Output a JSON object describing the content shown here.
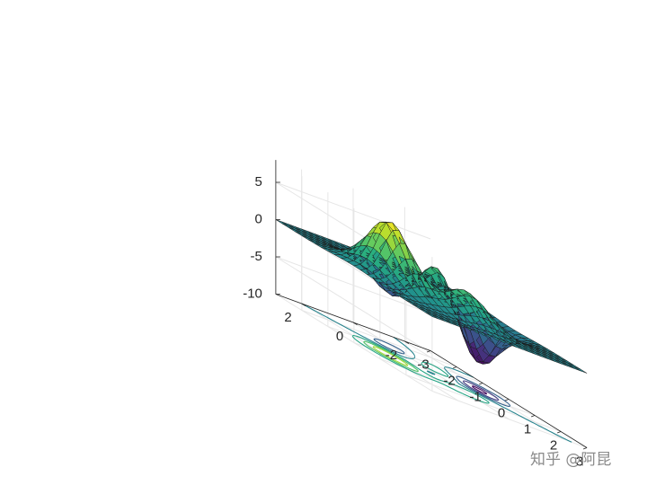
{
  "chart_data": {
    "type": "surface",
    "function": "peaks",
    "x": {
      "min": -3,
      "max": 3,
      "ticks": [
        -3,
        -2,
        -1,
        0,
        1,
        2,
        3
      ],
      "tick_labels": [
        "-3",
        "-2",
        "-1",
        "0",
        "1",
        "2",
        "3"
      ]
    },
    "y": {
      "min": -3,
      "max": 3,
      "ticks": [
        -2,
        0,
        2
      ],
      "tick_labels": [
        "-2",
        "0",
        "2"
      ]
    },
    "z": {
      "min": -10,
      "max": 8,
      "ticks": [
        -10,
        -5,
        0,
        5
      ],
      "tick_labels": [
        "-10",
        "-5",
        "0",
        "5"
      ]
    },
    "grid_points": 25,
    "projected_contour": true,
    "contour_levels": [
      -6,
      -4,
      -2,
      0,
      2,
      4,
      6
    ],
    "colormap": "viridis",
    "colormap_stops": [
      "#440154",
      "#472d7b",
      "#3b528b",
      "#2c728e",
      "#21918c",
      "#28ae80",
      "#5ec962",
      "#addc30",
      "#fde725"
    ],
    "grid": true,
    "title": "",
    "xlabel": "",
    "ylabel": "",
    "zlabel": ""
  },
  "watermark": "知乎 @阿昆"
}
